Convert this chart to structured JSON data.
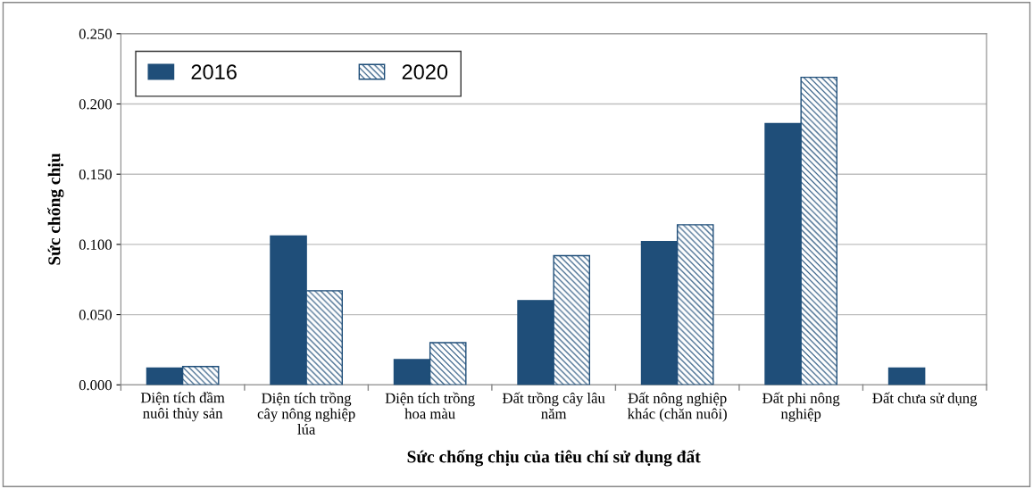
{
  "chart_data": {
    "type": "bar",
    "xlabel": "Sức chống chịu của tiêu chí sử dụng đất",
    "ylabel": "Sức chống chịu",
    "categories": [
      "Diện tích đầm nuôi thủy sản",
      "Diện tích trồng cây nông nghiệp lúa",
      "Diện tích trồng hoa màu",
      "Đất trồng cây lâu năm",
      "Đất nông nghiệp khác (chăn nuôi)",
      "Đất phi nông nghiệp",
      "Đất chưa sử dụng"
    ],
    "series": [
      {
        "name": "2016",
        "color": "#1f4e79",
        "values": [
          0.012,
          0.106,
          0.018,
          0.06,
          0.102,
          0.186,
          0.012
        ]
      },
      {
        "name": "2020",
        "color": "#1f4e79",
        "values": [
          0.013,
          0.067,
          0.03,
          0.092,
          0.114,
          0.219,
          null
        ]
      }
    ],
    "ylim": [
      0,
      0.25
    ],
    "yticks": [
      {
        "value": 0,
        "label": "0.000"
      },
      {
        "value": 0.05,
        "label": "0.050"
      },
      {
        "value": 0.1,
        "label": "0.100"
      },
      {
        "value": 0.15,
        "label": "0.150"
      },
      {
        "value": 0.2,
        "label": "0.200"
      },
      {
        "value": 0.25,
        "label": "0.250"
      }
    ],
    "grid": "y",
    "legend": "top left"
  }
}
